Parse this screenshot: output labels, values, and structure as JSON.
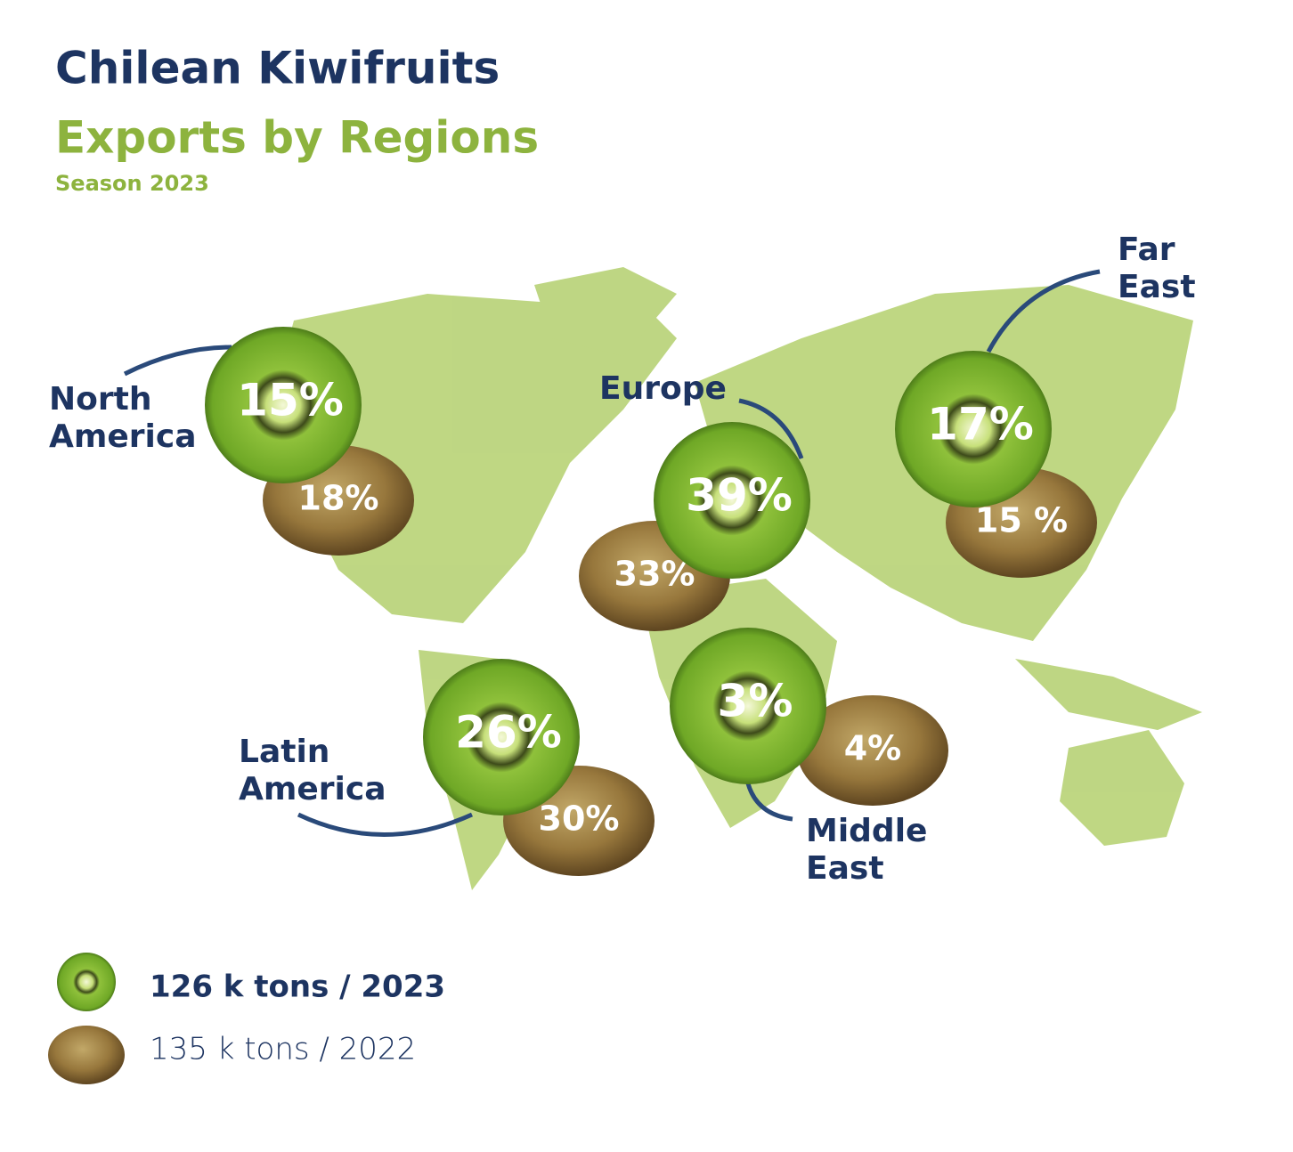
{
  "header": {
    "title": "Chilean Kiwifruits",
    "subtitle": "Exports by Regions",
    "season": "Season 2023"
  },
  "regions": [
    {
      "name_lines": [
        "North",
        "America"
      ],
      "pct_2023": "15%",
      "pct_2022": "18%"
    },
    {
      "name_lines": [
        "Europe"
      ],
      "pct_2023": "39%",
      "pct_2022": "33%"
    },
    {
      "name_lines": [
        "Far",
        "East"
      ],
      "pct_2023": "17%",
      "pct_2022": "15 %"
    },
    {
      "name_lines": [
        "Latin",
        "America"
      ],
      "pct_2023": "26%",
      "pct_2022": "30%"
    },
    {
      "name_lines": [
        "Middle",
        "East"
      ],
      "pct_2023": "3%",
      "pct_2022": "4%"
    }
  ],
  "legend": {
    "current": "126 k tons / 2023",
    "previous": "135 k tons / 2022"
  }
}
